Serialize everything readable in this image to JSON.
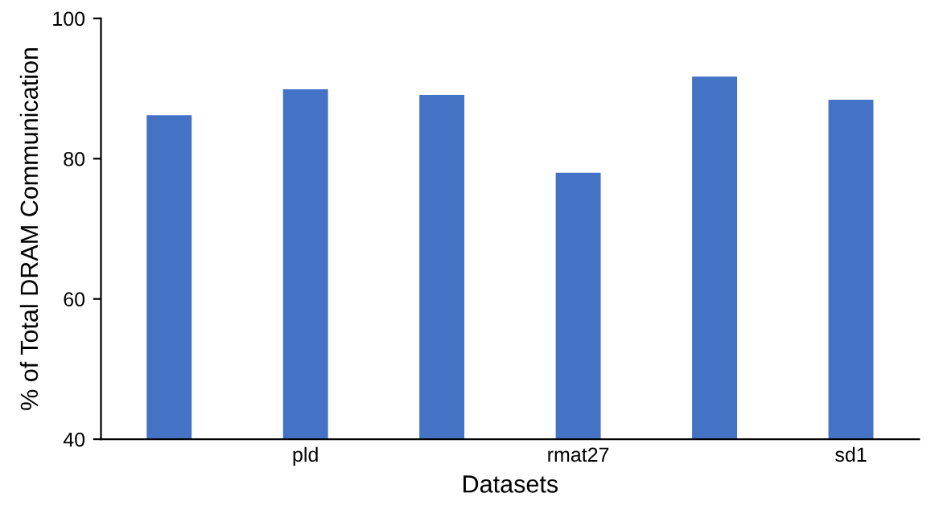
{
  "chart_data": {
    "type": "bar",
    "xlabel": "Datasets",
    "ylabel": "% of Total DRAM Communication",
    "categories": [
      null,
      "pld",
      null,
      "rmat27",
      null,
      "sd1"
    ],
    "values": [
      86.2,
      89.9,
      89.1,
      78.0,
      91.7,
      88.4
    ],
    "color": "#4472c4",
    "ylim": [
      40,
      100
    ],
    "yticks": [
      40,
      60,
      80,
      100
    ],
    "grid": false
  }
}
